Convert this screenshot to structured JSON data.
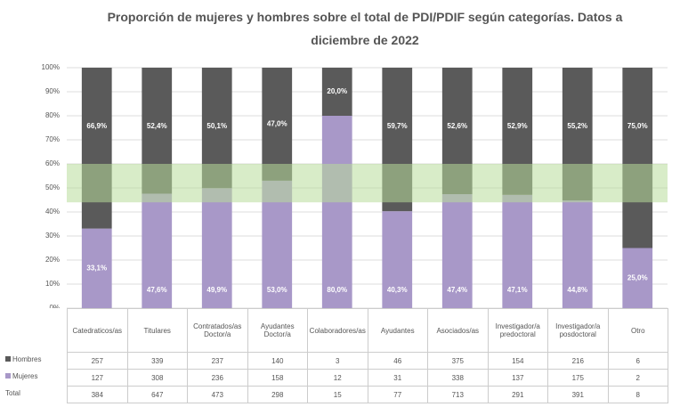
{
  "chart_data": {
    "type": "stacked_bar",
    "title": "Proporción de mujeres y hombres sobre el total de PDI/PDIF según categorías. Datos a diciembre de 2022",
    "categories": [
      "Catedraticos/as",
      "Titulares",
      "Contratados/as Doctor/a",
      "Ayudantes Doctor/a",
      "Colaboradores/as",
      "Ayudantes",
      "Asociados/as",
      "Investigador/a predoctoral",
      "Investigador/a posdoctoral",
      "Otro"
    ],
    "series": [
      {
        "name": "Mujeres",
        "color": "#a898c8",
        "values": [
          33.1,
          47.6,
          49.9,
          53.0,
          80.0,
          40.3,
          47.4,
          47.1,
          44.8,
          25.0
        ],
        "value_labels": [
          "33,1%",
          "47,6%",
          "49,9%",
          "53,0%",
          "80,0%",
          "40,3%",
          "47,4%",
          "47,1%",
          "44,8%",
          "25,0%"
        ]
      },
      {
        "name": "Hombres",
        "color": "#5a5a5a",
        "values": [
          66.9,
          52.4,
          50.1,
          47.0,
          20.0,
          59.7,
          52.6,
          52.9,
          55.2,
          75.0
        ],
        "value_labels": [
          "66,9%",
          "52,4%",
          "50,1%",
          "47,0%",
          "20,0%",
          "59,7%",
          "52,6%",
          "52,9%",
          "55,2%",
          "75,0%"
        ]
      }
    ],
    "band": [
      44,
      60
    ],
    "band_color": "#b8dc9a",
    "ylim": [
      0,
      100
    ],
    "yticks": [
      {
        "value": 0,
        "label": "0%"
      },
      {
        "value": 10,
        "label": "10%"
      },
      {
        "value": 20,
        "label": "20%"
      },
      {
        "value": 30,
        "label": "30%"
      },
      {
        "value": 40,
        "label": "40%"
      },
      {
        "value": 50,
        "label": "50%"
      },
      {
        "value": 60,
        "label": "60%"
      },
      {
        "value": 70,
        "label": "70%"
      },
      {
        "value": 80,
        "label": "80%"
      },
      {
        "value": 90,
        "label": "90%"
      },
      {
        "value": 100,
        "label": "100%"
      }
    ],
    "table": {
      "rows": [
        {
          "name": "Hombres",
          "color": "#5a5a5a",
          "values": [
            257,
            339,
            237,
            140,
            3,
            46,
            375,
            154,
            216,
            6
          ]
        },
        {
          "name": "Mujeres",
          "color": "#a898c8",
          "values": [
            127,
            308,
            236,
            158,
            12,
            31,
            338,
            137,
            175,
            2
          ]
        },
        {
          "name": "Total",
          "values": [
            384,
            647,
            473,
            298,
            15,
            77,
            713,
            291,
            391,
            8
          ]
        }
      ]
    }
  }
}
